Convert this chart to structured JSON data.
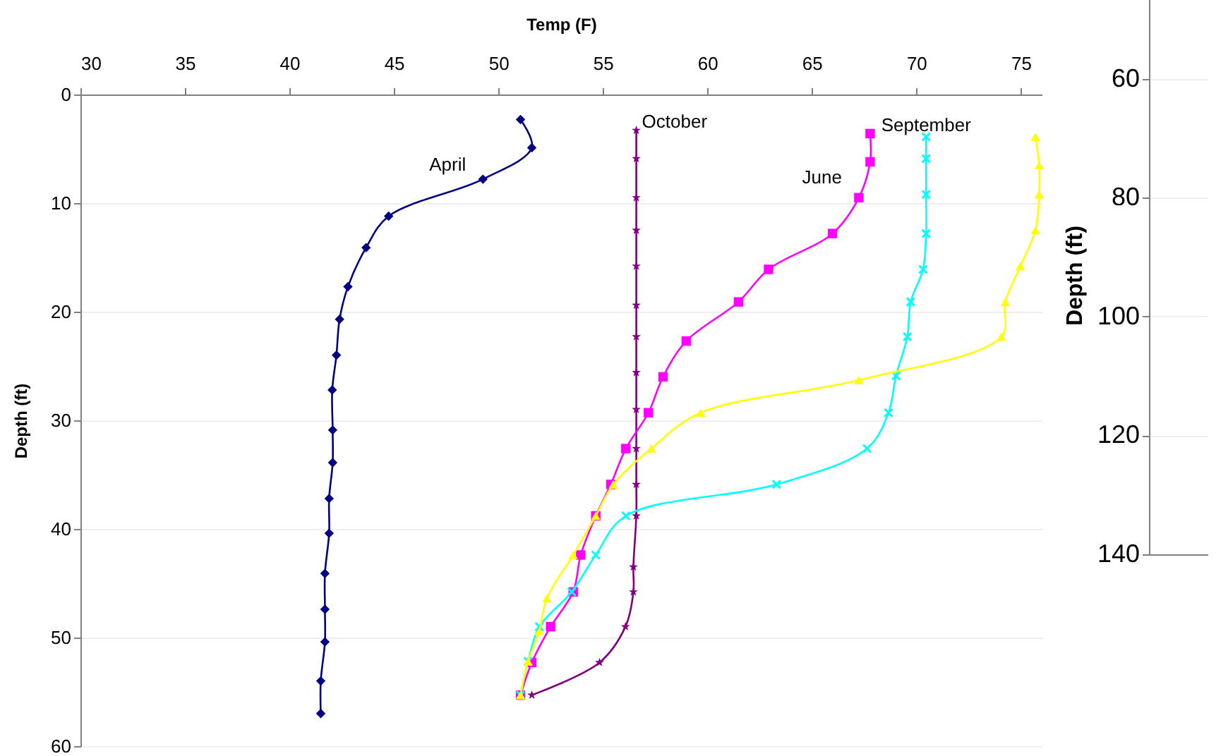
{
  "chart_data": [
    {
      "type": "line",
      "xlabel": "Temp (F)",
      "ylabel": "Depth (ft)",
      "xlim": [
        30,
        76
      ],
      "ylim": [
        60,
        0
      ],
      "xticks": [
        30,
        35,
        40,
        45,
        50,
        55,
        60,
        65,
        70,
        75
      ],
      "yticks": [
        0,
        10,
        20,
        30,
        40,
        50,
        60
      ],
      "grid": "y",
      "line_style": "solid",
      "series": [
        {
          "name": "April",
          "color": "#000080",
          "marker": "diamond",
          "x": [
            51.06,
            51.6,
            49.26,
            44.75,
            43.67,
            42.8,
            42.4,
            42.25,
            42.05,
            42.07,
            42.07,
            41.9,
            41.9,
            41.7,
            41.7,
            41.7,
            41.5,
            41.5
          ],
          "values": [
            2.3,
            4.9,
            7.8,
            11.2,
            14.1,
            17.7,
            20.7,
            24,
            27.2,
            30.9,
            33.9,
            37.2,
            40.4,
            44.1,
            47.4,
            50.4,
            54,
            57
          ]
        },
        {
          "name": "October",
          "color": "#800080",
          "marker": "star",
          "x": [
            56.6,
            56.6,
            56.6,
            56.6,
            56.6,
            56.6,
            56.6,
            56.6,
            56.6,
            56.6,
            56.6,
            56.6,
            56.46,
            56.46,
            56.08,
            54.84,
            51.6
          ],
          "values": [
            3.3,
            5.9,
            9.5,
            12.5,
            15.8,
            19.4,
            22.3,
            25.6,
            29,
            32.6,
            35.9,
            38.8,
            43.5,
            45.8,
            49,
            52.3,
            55.3
          ]
        },
        {
          "name": "June",
          "color": "#ff00ff",
          "marker": "square",
          "x": [
            67.79,
            67.79,
            67.25,
            65.99,
            62.93,
            61.49,
            58.99,
            57.88,
            57.18,
            56.1,
            55.38,
            54.66,
            53.94,
            53.58,
            52.5,
            51.6,
            51.06
          ],
          "values": [
            3.6,
            6.2,
            9.5,
            12.8,
            16.1,
            19.1,
            22.7,
            26,
            29.3,
            32.6,
            35.9,
            38.8,
            42.4,
            45.8,
            49,
            52.3,
            55.3
          ]
        },
        {
          "name": "September",
          "color": "#00ffff",
          "marker": "cross",
          "x": [
            70.47,
            70.47,
            70.47,
            70.47,
            70.32,
            69.73,
            69.57,
            69.03,
            68.67,
            67.64,
            63.31,
            56.1,
            54.66,
            53.51,
            51.96,
            51.42,
            51.06
          ],
          "values": [
            3.9,
            5.9,
            9.2,
            12.8,
            16.1,
            19.1,
            22.3,
            25.9,
            29.3,
            32.6,
            35.9,
            38.8,
            42.4,
            45.8,
            49,
            52.2,
            55.3
          ]
        },
        {
          "color": "#ffff00",
          "marker": "triangle",
          "x": [
            75.7,
            75.88,
            75.88,
            75.7,
            74.98,
            74.26,
            74.07,
            67.25,
            59.68,
            57.32,
            55.5,
            54.66,
            53.58,
            52.32,
            51.96,
            51.42,
            51.06
          ],
          "values": [
            3.9,
            6.5,
            9.2,
            12.5,
            15.8,
            19.1,
            22.3,
            26.3,
            29.3,
            32.6,
            35.9,
            38.8,
            42.4,
            46.4,
            49.4,
            52.2,
            55.3
          ]
        }
      ]
    },
    {
      "type": "line",
      "ylabel": "Depth (ft)",
      "categories": [
        null
      ],
      "values": [
        null
      ],
      "ylim": [
        140,
        46
      ],
      "yticks": [
        60,
        80,
        100,
        120,
        140
      ],
      "grid": "y",
      "tick_labels": "y"
    }
  ]
}
